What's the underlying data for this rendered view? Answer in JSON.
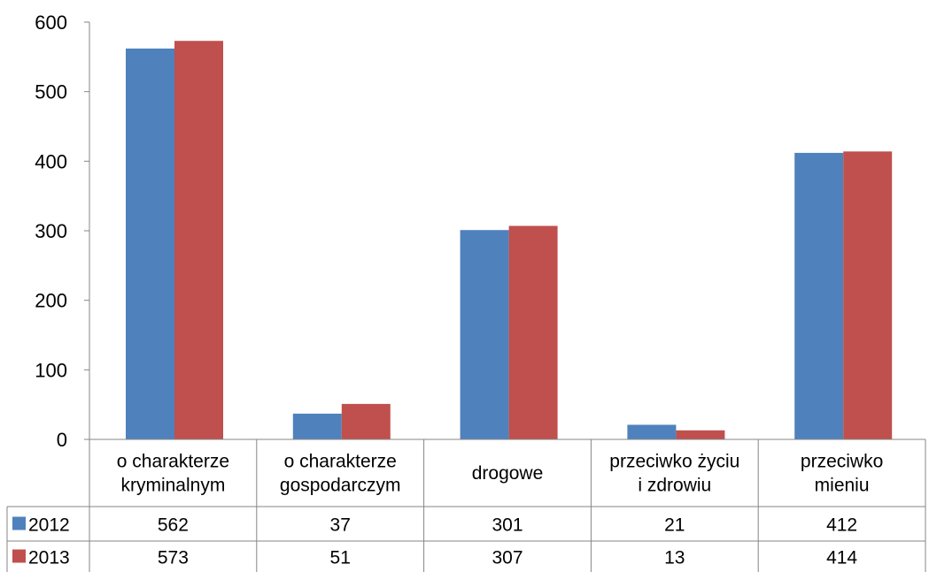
{
  "chart_data": {
    "type": "bar",
    "categories": [
      [
        "o charakterze",
        "kryminalnym"
      ],
      [
        "o charakterze",
        "gospodarczym"
      ],
      [
        "drogowe"
      ],
      [
        "przeciwko życiu",
        "i zdrowiu"
      ],
      [
        "przeciwko",
        "mieniu"
      ]
    ],
    "series": [
      {
        "name": "2012",
        "color": "#4F81BD",
        "values": [
          562,
          37,
          301,
          21,
          412
        ]
      },
      {
        "name": "2013",
        "color": "#C0504D",
        "values": [
          573,
          51,
          307,
          13,
          414
        ]
      }
    ],
    "yticks": [
      "0",
      "100",
      "200",
      "300",
      "400",
      "500",
      "600"
    ],
    "ylim": [
      0,
      600
    ],
    "grid": false,
    "legend": "data-table",
    "data_table": true
  }
}
